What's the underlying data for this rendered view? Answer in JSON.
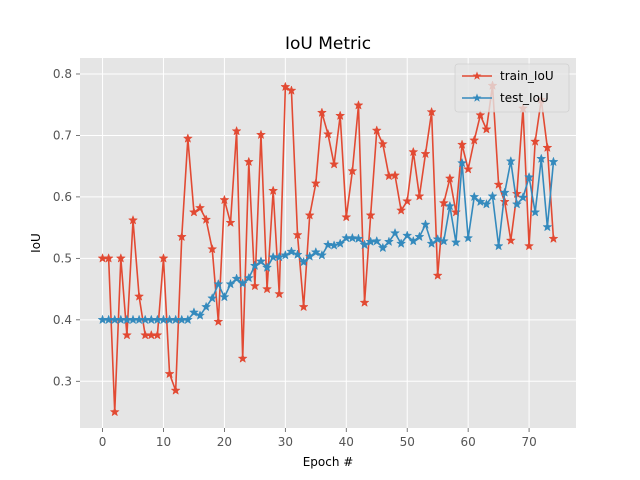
{
  "chart_data": {
    "type": "line",
    "title": "IoU Metric",
    "xlabel": "Epoch #",
    "ylabel": "IoU",
    "xlim": [
      -3.7,
      77.7
    ],
    "ylim": [
      0.224,
      0.826
    ],
    "xticks": [
      0,
      10,
      20,
      30,
      40,
      50,
      60,
      70
    ],
    "yticks": [
      0.3,
      0.4,
      0.5,
      0.6,
      0.7,
      0.8
    ],
    "grid": true,
    "legend_position": "top-right",
    "background": "#E5E5E5",
    "x": [
      0,
      1,
      2,
      3,
      4,
      5,
      6,
      7,
      8,
      9,
      10,
      11,
      12,
      13,
      14,
      15,
      16,
      17,
      18,
      19,
      20,
      21,
      22,
      23,
      24,
      25,
      26,
      27,
      28,
      29,
      30,
      31,
      32,
      33,
      34,
      35,
      36,
      37,
      38,
      39,
      40,
      41,
      42,
      43,
      44,
      45,
      46,
      47,
      48,
      49,
      50,
      51,
      52,
      53,
      54,
      55,
      56,
      57,
      58,
      59,
      60,
      61,
      62,
      63,
      64,
      65,
      66,
      67,
      68,
      69,
      70,
      71,
      72,
      73,
      74
    ],
    "series": [
      {
        "name": "train_IoU",
        "color": "#E24A33",
        "marker": "star",
        "values": [
          0.5,
          0.5,
          0.25,
          0.5,
          0.375,
          0.562,
          0.438,
          0.375,
          0.375,
          0.375,
          0.5,
          0.312,
          0.285,
          0.535,
          0.695,
          0.575,
          0.582,
          0.563,
          0.515,
          0.397,
          0.595,
          0.558,
          0.707,
          0.337,
          0.657,
          0.455,
          0.701,
          0.45,
          0.61,
          0.442,
          0.779,
          0.773,
          0.538,
          0.421,
          0.57,
          0.622,
          0.737,
          0.702,
          0.653,
          0.732,
          0.567,
          0.642,
          0.749,
          0.428,
          0.57,
          0.708,
          0.686,
          0.634,
          0.635,
          0.578,
          0.593,
          0.673,
          0.601,
          0.67,
          0.738,
          0.472,
          0.59,
          0.63,
          0.575,
          0.685,
          0.645,
          0.692,
          0.733,
          0.71,
          0.781,
          0.62,
          0.592,
          0.529,
          0.605,
          0.744,
          0.52,
          0.69,
          0.758,
          0.68,
          0.532
        ]
      },
      {
        "name": "test_IoU",
        "color": "#348ABD",
        "marker": "star",
        "values": [
          0.4,
          0.4,
          0.4,
          0.4,
          0.4,
          0.4,
          0.4,
          0.4,
          0.4,
          0.4,
          0.4,
          0.4,
          0.4,
          0.4,
          0.4,
          0.412,
          0.407,
          0.421,
          0.435,
          0.458,
          0.437,
          0.458,
          0.467,
          0.459,
          0.468,
          0.488,
          0.495,
          0.485,
          0.502,
          0.502,
          0.505,
          0.511,
          0.506,
          0.494,
          0.503,
          0.51,
          0.505,
          0.522,
          0.521,
          0.524,
          0.533,
          0.533,
          0.532,
          0.522,
          0.527,
          0.528,
          0.517,
          0.527,
          0.541,
          0.524,
          0.537,
          0.528,
          0.535,
          0.555,
          0.524,
          0.531,
          0.528,
          0.585,
          0.526,
          0.655,
          0.533,
          0.6,
          0.592,
          0.588,
          0.601,
          0.52,
          0.607,
          0.658,
          0.588,
          0.599,
          0.632,
          0.575,
          0.662,
          0.551,
          0.657
        ]
      }
    ]
  }
}
